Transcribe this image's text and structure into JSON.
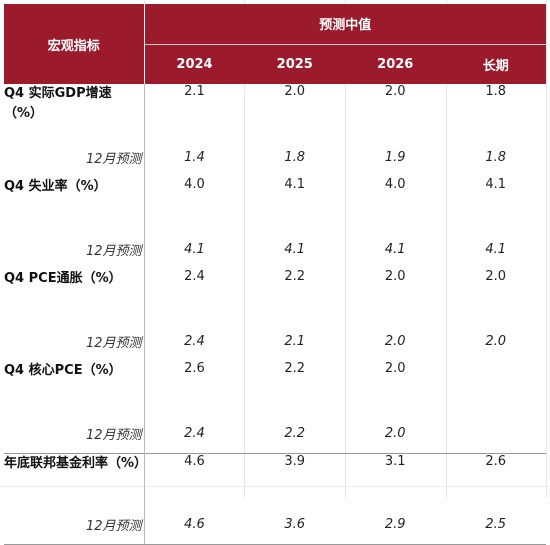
{
  "header": {
    "metric_label": "宏观指标",
    "group_label": "预测中值",
    "columns": [
      "2024",
      "2025",
      "2026",
      "长期"
    ]
  },
  "rows": [
    {
      "metric": "Q4 实际GDP增速（%）",
      "values": [
        "2.1",
        "2.0",
        "2.0",
        "1.8"
      ],
      "forecast_label": "12月预测",
      "forecast_values": [
        "1.4",
        "1.8",
        "1.9",
        "1.8"
      ]
    },
    {
      "metric": "Q4 失业率（%）",
      "values": [
        "4.0",
        "4.1",
        "4.0",
        "4.1"
      ],
      "forecast_label": "12月预测",
      "forecast_values": [
        "4.1",
        "4.1",
        "4.1",
        "4.1"
      ]
    },
    {
      "metric": "Q4 PCE通胀（%）",
      "values": [
        "2.4",
        "2.2",
        "2.0",
        "2.0"
      ],
      "forecast_label": "12月预测",
      "forecast_values": [
        "2.4",
        "2.1",
        "2.0",
        "2.0"
      ]
    },
    {
      "metric": "Q4 核心PCE（%）",
      "values": [
        "2.6",
        "2.2",
        "2.0",
        ""
      ],
      "forecast_label": "12月预测",
      "forecast_values": [
        "2.4",
        "2.2",
        "2.0",
        ""
      ]
    },
    {
      "metric": "年底联邦基金利率（%）",
      "values": [
        "4.6",
        "3.9",
        "3.1",
        "2.6"
      ],
      "forecast_label": "12月预测",
      "forecast_values": [
        "4.6",
        "3.6",
        "2.9",
        "2.5"
      ]
    }
  ],
  "colors": {
    "header_bg": "#9b1a2b",
    "header_text": "#ffffff"
  }
}
